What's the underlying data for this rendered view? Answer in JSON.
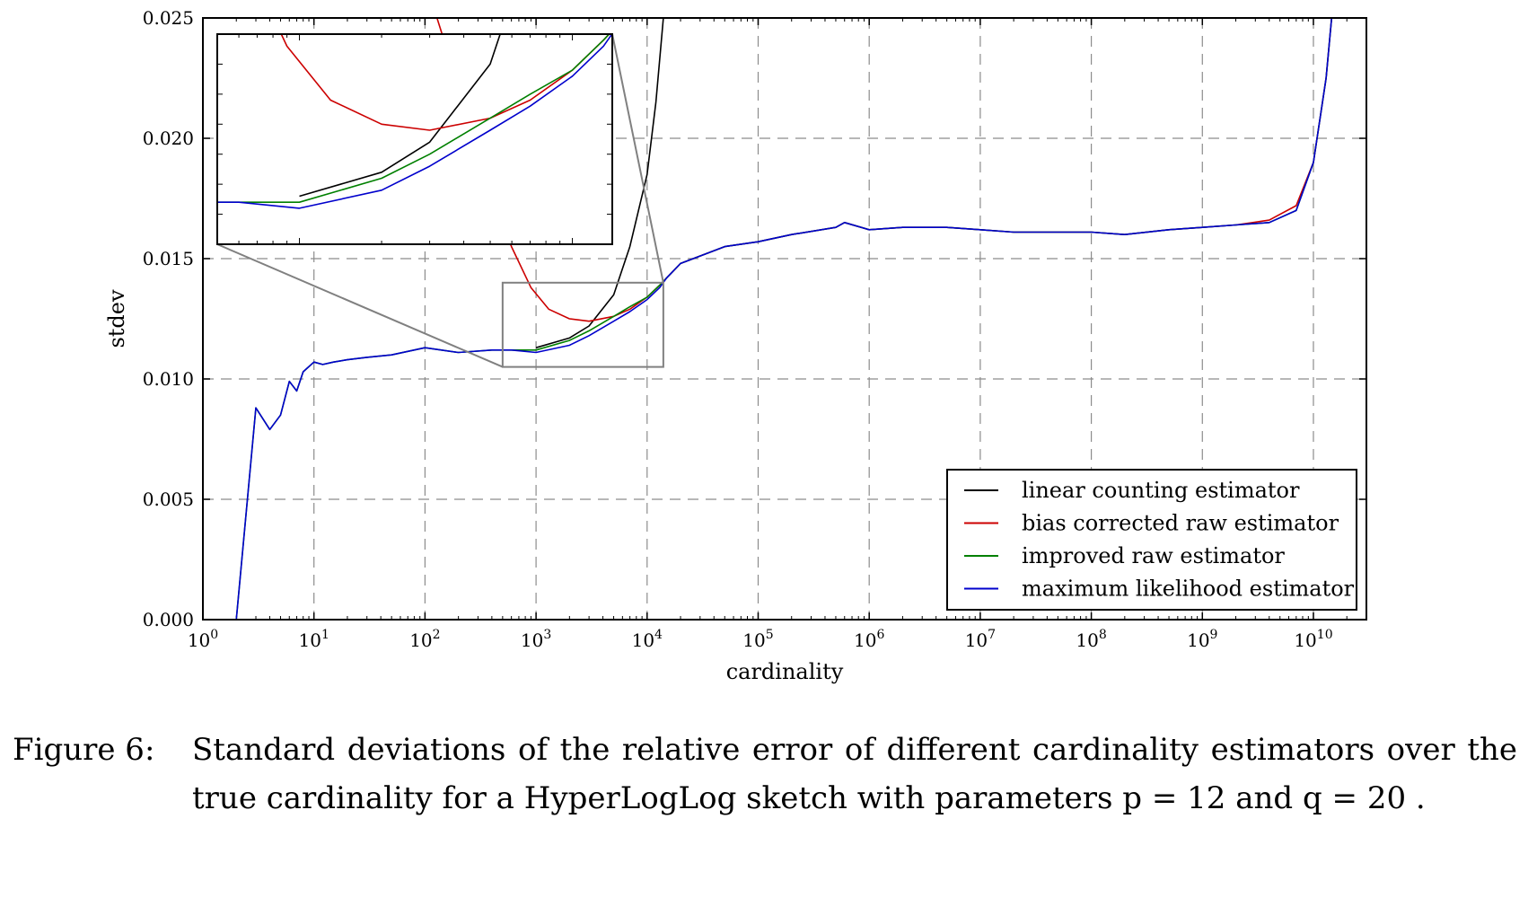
{
  "caption": {
    "prefix": "Figure 6:",
    "text": "Standard deviations of the relative error of different cardinality estimators over the true cardinality for a HyperLogLog sketch with parameters p = 12 and q = 20 ."
  },
  "chart_data": {
    "type": "line",
    "title": "",
    "xlabel": "cardinality",
    "ylabel": "stdev",
    "xscale": "log",
    "xlim": [
      1,
      30000000000
    ],
    "ylim": [
      0.0,
      0.025
    ],
    "grid": true,
    "legend_position": "lower-right",
    "x_ticks": [
      {
        "value": 1,
        "base": "10",
        "exp": "0"
      },
      {
        "value": 10,
        "base": "10",
        "exp": "1"
      },
      {
        "value": 100,
        "base": "10",
        "exp": "2"
      },
      {
        "value": 1000,
        "base": "10",
        "exp": "3"
      },
      {
        "value": 10000,
        "base": "10",
        "exp": "4"
      },
      {
        "value": 100000,
        "base": "10",
        "exp": "5"
      },
      {
        "value": 1000000,
        "base": "10",
        "exp": "6"
      },
      {
        "value": 10000000,
        "base": "10",
        "exp": "7"
      },
      {
        "value": 100000000,
        "base": "10",
        "exp": "8"
      },
      {
        "value": 1000000000,
        "base": "10",
        "exp": "9"
      },
      {
        "value": 10000000000,
        "base": "10",
        "exp": "10"
      }
    ],
    "y_ticks": [
      {
        "value": 0.0,
        "label": "0.000"
      },
      {
        "value": 0.005,
        "label": "0.005"
      },
      {
        "value": 0.01,
        "label": "0.010"
      },
      {
        "value": 0.015,
        "label": "0.015"
      },
      {
        "value": 0.02,
        "label": "0.020"
      },
      {
        "value": 0.025,
        "label": "0.025"
      }
    ],
    "series": [
      {
        "name": "linear counting estimator",
        "color": "#000000",
        "x": [
          1000,
          2000,
          3000,
          5000,
          7000,
          10000,
          12000,
          14000,
          16000
        ],
        "y": [
          0.0113,
          0.0117,
          0.0122,
          0.0135,
          0.0155,
          0.0185,
          0.0215,
          0.025,
          0.028
        ]
      },
      {
        "name": "bias corrected raw estimator",
        "color": "#cc0000",
        "x": [
          80,
          150,
          250,
          400,
          600,
          900,
          1300,
          2000,
          3000,
          5000,
          7000,
          10000,
          13000,
          15000,
          20000,
          50000,
          100000,
          200000,
          500000,
          600000,
          1000000,
          2000000,
          5000000,
          10000000,
          20000000,
          50000000,
          100000000,
          200000000,
          500000000,
          1000000000,
          2000000000,
          4000000000,
          7000000000,
          10000000000,
          13000000000,
          16000000000
        ],
        "y": [
          0.028,
          0.024,
          0.0205,
          0.0175,
          0.0155,
          0.0138,
          0.0129,
          0.0125,
          0.0124,
          0.0126,
          0.0129,
          0.0134,
          0.0139,
          0.0142,
          0.0148,
          0.0155,
          0.0157,
          0.016,
          0.0163,
          0.0165,
          0.0162,
          0.0163,
          0.0163,
          0.0162,
          0.0161,
          0.0161,
          0.0161,
          0.016,
          0.0162,
          0.0163,
          0.0164,
          0.0166,
          0.0172,
          0.019,
          0.0225,
          0.027
        ]
      },
      {
        "name": "improved raw estimator",
        "color": "#008000",
        "x": [
          1,
          2,
          3,
          4,
          5,
          6,
          7,
          8,
          10,
          12,
          15,
          20,
          30,
          50,
          100,
          200,
          400,
          600,
          1000,
          2000,
          3000,
          5000,
          7000,
          10000,
          13000,
          15000,
          20000,
          50000,
          100000,
          200000,
          500000,
          600000,
          1000000,
          2000000,
          5000000,
          10000000,
          20000000,
          50000000,
          100000000,
          200000000,
          500000000,
          1000000000,
          2000000000,
          4000000000,
          7000000000,
          10000000000,
          13000000000,
          16000000000
        ],
        "y": [
          0.0,
          0.0,
          0.0088,
          0.0079,
          0.0085,
          0.0099,
          0.0095,
          0.0103,
          0.0107,
          0.0106,
          0.0107,
          0.0108,
          0.0109,
          0.011,
          0.0113,
          0.0111,
          0.0112,
          0.0112,
          0.0112,
          0.0116,
          0.012,
          0.0126,
          0.013,
          0.0134,
          0.0139,
          0.0142,
          0.0148,
          0.0155,
          0.0157,
          0.016,
          0.0163,
          0.0165,
          0.0162,
          0.0163,
          0.0163,
          0.0162,
          0.0161,
          0.0161,
          0.0161,
          0.016,
          0.0162,
          0.0163,
          0.0164,
          0.0165,
          0.017,
          0.019,
          0.0225,
          0.027
        ]
      },
      {
        "name": "maximum likelihood estimator",
        "color": "#0000cc",
        "x": [
          1,
          2,
          3,
          4,
          5,
          6,
          7,
          8,
          10,
          12,
          15,
          20,
          30,
          50,
          100,
          200,
          400,
          600,
          1000,
          2000,
          3000,
          5000,
          7000,
          10000,
          13000,
          15000,
          20000,
          50000,
          100000,
          200000,
          500000,
          600000,
          1000000,
          2000000,
          5000000,
          10000000,
          20000000,
          50000000,
          100000000,
          200000000,
          500000000,
          1000000000,
          2000000000,
          4000000000,
          7000000000,
          10000000000,
          13000000000,
          16000000000
        ],
        "y": [
          0.0,
          0.0,
          0.0088,
          0.0079,
          0.0085,
          0.0099,
          0.0095,
          0.0103,
          0.0107,
          0.0106,
          0.0107,
          0.0108,
          0.0109,
          0.011,
          0.0113,
          0.0111,
          0.0112,
          0.0112,
          0.0111,
          0.0114,
          0.0118,
          0.0124,
          0.0128,
          0.0133,
          0.0138,
          0.0142,
          0.0148,
          0.0155,
          0.0157,
          0.016,
          0.0163,
          0.0165,
          0.0162,
          0.0163,
          0.0163,
          0.0162,
          0.0161,
          0.0161,
          0.0161,
          0.016,
          0.0162,
          0.0163,
          0.0164,
          0.0165,
          0.017,
          0.019,
          0.0225,
          0.027
        ]
      }
    ],
    "inset": {
      "xlim": [
        500,
        14000
      ],
      "ylim": [
        0.0105,
        0.014
      ]
    }
  }
}
